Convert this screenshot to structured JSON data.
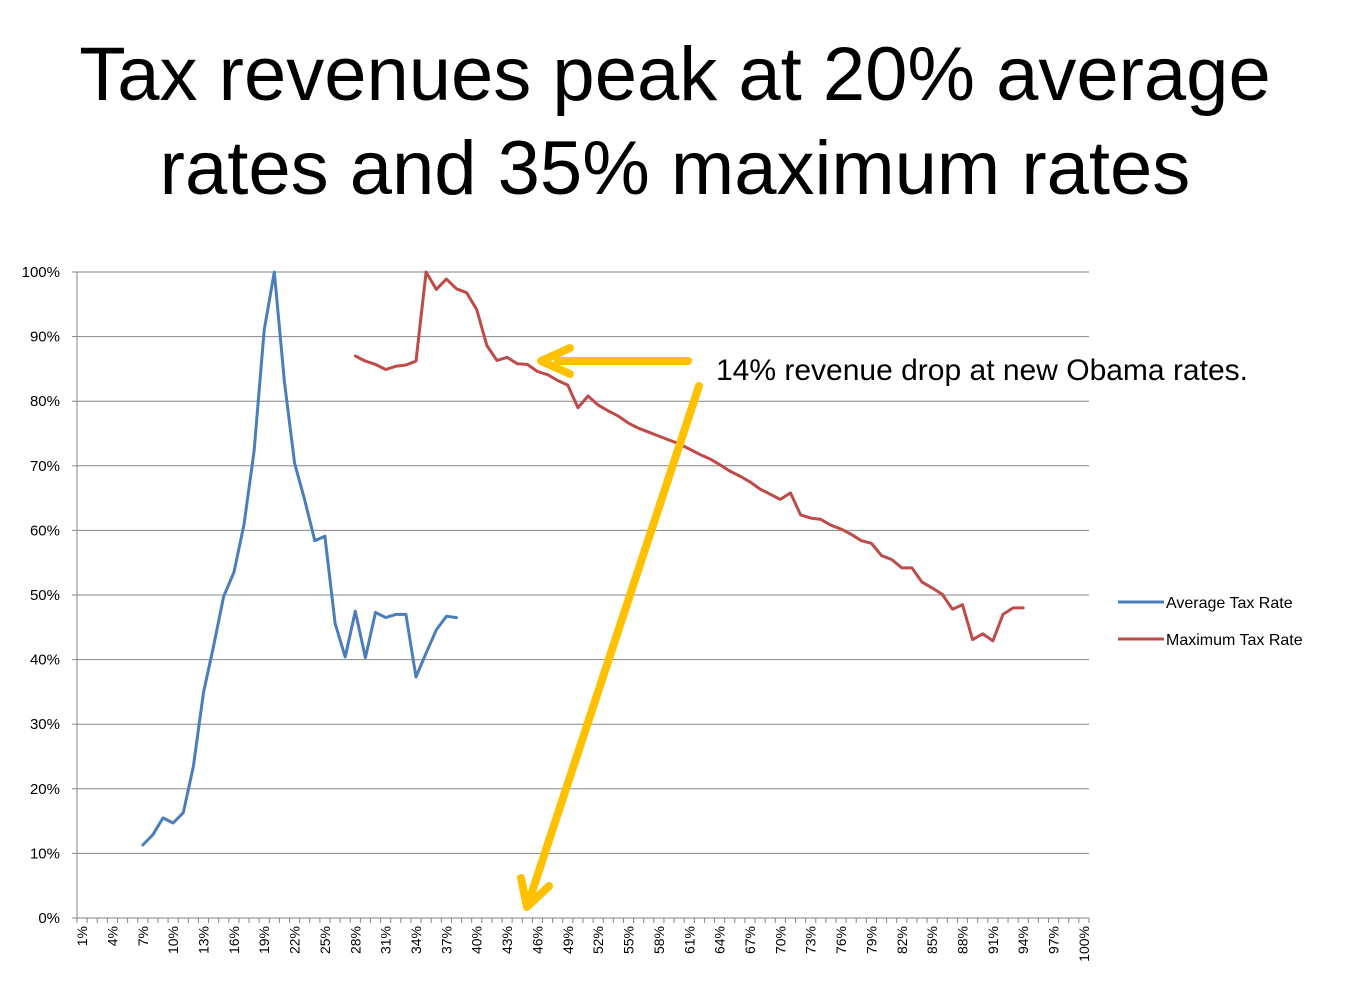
{
  "slide": {
    "title_line1": "Tax revenues peak at 20% average",
    "title_line2": "rates and 35% maximum rates"
  },
  "chart_data": {
    "type": "line",
    "title": "Tax revenues peak at 20% average rates and 35% maximum rates",
    "xlabel": "",
    "ylabel": "",
    "xlim": [
      1,
      100
    ],
    "ylim": [
      0,
      100
    ],
    "x_tick_labels": [
      "1%",
      "4%",
      "7%",
      "10%",
      "13%",
      "16%",
      "19%",
      "22%",
      "25%",
      "28%",
      "31%",
      "34%",
      "37%",
      "40%",
      "43%",
      "46%",
      "49%",
      "52%",
      "55%",
      "58%",
      "61%",
      "64%",
      "67%",
      "70%",
      "73%",
      "76%",
      "79%",
      "82%",
      "85%",
      "88%",
      "91%",
      "94%",
      "97%",
      "100%"
    ],
    "y_tick_labels": [
      "0%",
      "10%",
      "20%",
      "30%",
      "40%",
      "50%",
      "60%",
      "70%",
      "80%",
      "90%",
      "100%"
    ],
    "grid": true,
    "legend_position": "right",
    "series": [
      {
        "name": "Average Tax Rate",
        "color": "#4a7ebb",
        "x": [
          7,
          8,
          9,
          10,
          11,
          12,
          13,
          14,
          15,
          16,
          17,
          18,
          19,
          20,
          21,
          22,
          23,
          24,
          25,
          26,
          27,
          28,
          29,
          30,
          31,
          32,
          33,
          34,
          35,
          36,
          37,
          38
        ],
        "values": [
          11.3,
          12.9,
          15.5,
          14.7,
          16.3,
          23.5,
          34.9,
          42.1,
          49.8,
          53.5,
          60.9,
          72.3,
          91.0,
          100.0,
          82.9,
          70.4,
          64.7,
          58.4,
          59.1,
          45.6,
          40.4,
          47.5,
          40.3,
          47.3,
          46.5,
          47.0,
          47.0,
          37.3,
          41.0,
          44.6,
          46.7,
          46.5
        ]
      },
      {
        "name": "Maximum Tax Rate",
        "color": "#be4b48",
        "x": [
          28,
          29,
          30,
          31,
          32,
          33,
          34,
          35,
          36,
          37,
          38,
          39,
          40,
          41,
          42,
          43,
          44,
          45,
          46,
          47,
          48,
          49,
          50,
          51,
          52,
          53,
          54,
          55,
          56,
          57,
          58,
          59,
          60,
          61,
          62,
          63,
          64,
          65,
          66,
          67,
          68,
          69,
          70,
          71,
          72,
          73,
          74,
          75,
          76,
          77,
          78,
          79,
          80,
          81,
          82,
          83,
          84,
          85,
          86,
          87,
          88,
          89,
          90,
          91,
          92,
          93,
          94
        ],
        "values": [
          87.0,
          86.2,
          85.7,
          84.9,
          85.4,
          85.6,
          86.2,
          100.0,
          97.3,
          98.9,
          97.4,
          96.8,
          94.2,
          88.6,
          86.3,
          86.8,
          85.8,
          85.7,
          84.6,
          84.1,
          83.2,
          82.5,
          79.0,
          80.8,
          79.4,
          78.5,
          77.7,
          76.6,
          75.8,
          75.2,
          74.6,
          74.0,
          73.4,
          72.6,
          71.8,
          71.1,
          70.2,
          69.2,
          68.4,
          67.5,
          66.4,
          65.6,
          64.8,
          65.8,
          62.4,
          61.9,
          61.7,
          60.8,
          60.2,
          59.4,
          58.4,
          58.0,
          56.1,
          55.5,
          54.2,
          54.2,
          52.0,
          51.1,
          50.1,
          47.8,
          48.5,
          43.1,
          44.0,
          42.9,
          47.0,
          48.0,
          48.0
        ]
      }
    ],
    "annotations": [
      {
        "text": "14% revenue drop at new Obama rates.",
        "arrow_color": "#ffc000"
      }
    ]
  },
  "legend": {
    "items": [
      {
        "label": "Average Tax Rate",
        "color": "#4a7ebb"
      },
      {
        "label": "Maximum Tax Rate",
        "color": "#be4b48"
      }
    ]
  },
  "annotation": {
    "text": "14% revenue drop at new Obama rates.",
    "arrow_color": "#ffc000"
  }
}
